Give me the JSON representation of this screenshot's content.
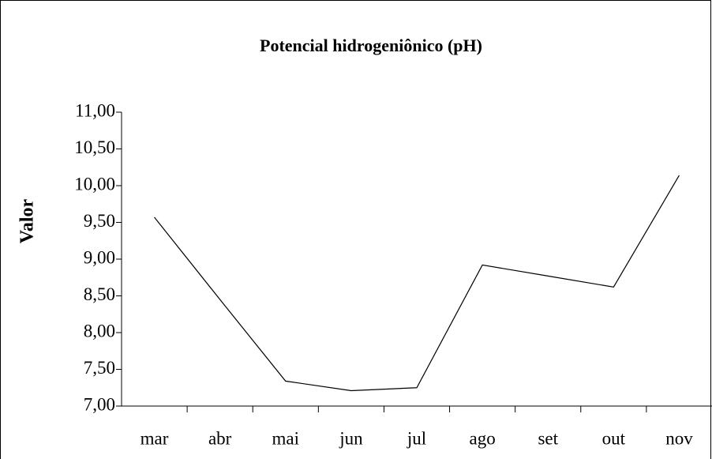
{
  "chart_data": {
    "type": "line",
    "title": "Potencial hidrogeniônico (pH)",
    "ylabel": "Valor",
    "categories": [
      "mar",
      "abr",
      "mai",
      "jun",
      "jul",
      "ago",
      "set",
      "out",
      "nov"
    ],
    "series": [
      {
        "name": "pH",
        "color": "#000000",
        "values": [
          9.57,
          8.45,
          7.34,
          7.21,
          7.25,
          8.92,
          8.77,
          8.62,
          10.14
        ]
      }
    ],
    "ylim": [
      7,
      11
    ],
    "yticks": [
      {
        "value": 7,
        "label": "7,00"
      },
      {
        "value": 7.5,
        "label": "7,50"
      },
      {
        "value": 8,
        "label": "8,00"
      },
      {
        "value": 8.5,
        "label": "8,50"
      },
      {
        "value": 9,
        "label": "9,00"
      },
      {
        "value": 9.5,
        "label": "9,50"
      },
      {
        "value": 10,
        "label": "10,00"
      },
      {
        "value": 10.5,
        "label": "10,50"
      },
      {
        "value": 11,
        "label": "11,00"
      }
    ],
    "grid": false
  }
}
